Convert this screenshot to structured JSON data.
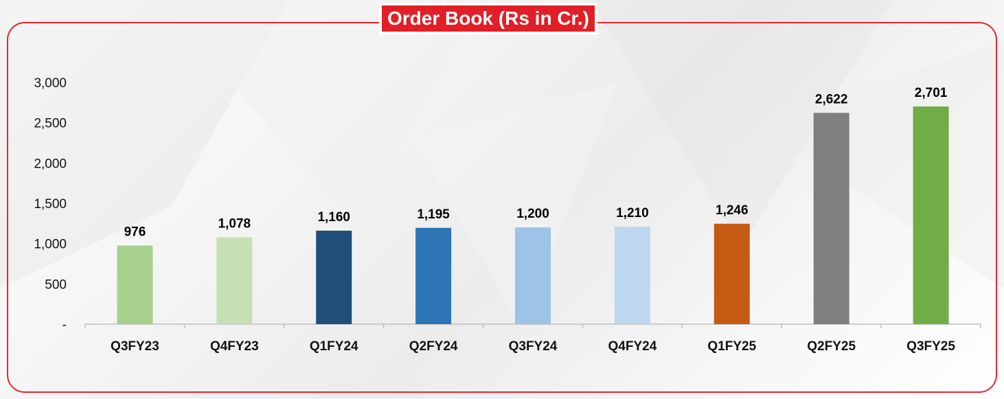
{
  "chart_data": {
    "type": "bar",
    "title": "Order Book (Rs in Cr.)",
    "categories": [
      "Q3FY23",
      "Q4FY23",
      "Q1FY24",
      "Q2FY24",
      "Q3FY24",
      "Q4FY24",
      "Q1FY25",
      "Q2FY25",
      "Q3FY25"
    ],
    "values": [
      976,
      1078,
      1160,
      1195,
      1200,
      1210,
      1246,
      2622,
      2701
    ],
    "value_labels": [
      "976",
      "1,078",
      "1,160",
      "1,195",
      "1,200",
      "1,210",
      "1,246",
      "2,622",
      "2,701"
    ],
    "colors": [
      "#a9d18e",
      "#c5e0b4",
      "#1f4e79",
      "#2e75b6",
      "#9dc3e6",
      "#bdd7ee",
      "#c55a11",
      "#7f7f7f",
      "#70ad47"
    ],
    "ylim": [
      0,
      3000
    ],
    "yticks": [
      0,
      500,
      1000,
      1500,
      2000,
      2500,
      3000
    ],
    "ytick_labels": [
      "-",
      "500",
      "1,000",
      "1,500",
      "2,000",
      "2,500",
      "3,000"
    ],
    "xlabel": "",
    "ylabel": "",
    "grid": false,
    "legend": "none"
  }
}
